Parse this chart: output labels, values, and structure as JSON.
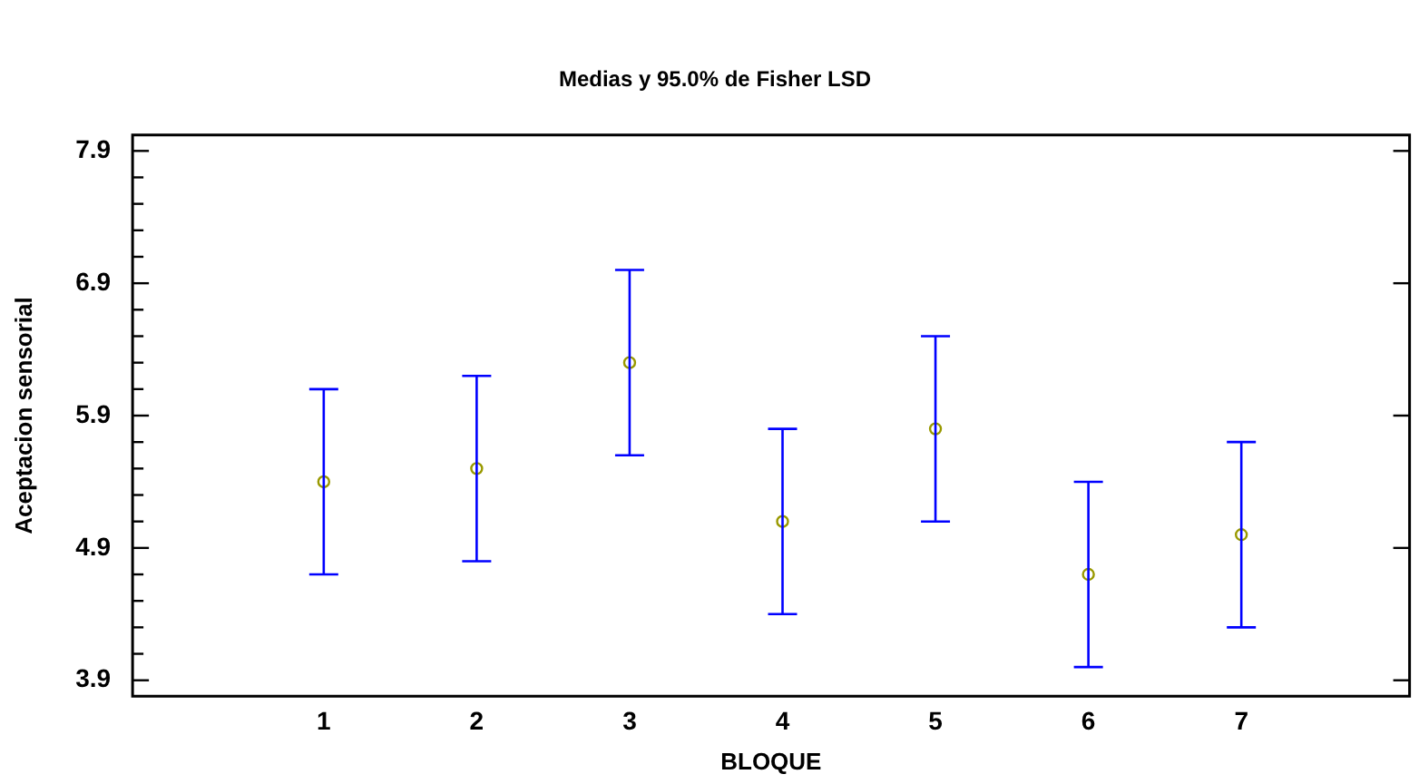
{
  "chart_data": {
    "type": "scatter",
    "title": "Medias y 95.0% de Fisher LSD",
    "xlabel": "BLOQUE",
    "ylabel": "Aceptacion sensorial",
    "x": [
      1,
      2,
      3,
      4,
      5,
      6,
      7
    ],
    "series": [
      {
        "color": "#999900",
        "values": [
          5.4,
          5.5,
          6.3,
          5.1,
          5.8,
          4.7,
          5.0
        ],
        "errors": [
          0.7,
          0.7,
          0.7,
          0.7,
          0.7,
          0.7,
          0.7
        ]
      }
    ],
    "xlim": [
      -0.25,
      8.1
    ],
    "xticks": [
      1,
      2,
      3,
      4,
      5,
      6,
      7
    ],
    "ylim": [
      3.78,
      8.02
    ],
    "yticks": [
      3.9,
      {
        "value": 4.1,
        "label": null
      },
      {
        "value": 4.3,
        "label": null
      },
      {
        "value": 4.5,
        "label": null
      },
      {
        "value": 4.7,
        "label": null
      },
      4.9,
      {
        "value": 5.1,
        "label": null
      },
      {
        "value": 5.3,
        "label": null
      },
      {
        "value": 5.5,
        "label": null
      },
      {
        "value": 5.7,
        "label": null
      },
      5.9,
      {
        "value": 6.1,
        "label": null
      },
      {
        "value": 6.3,
        "label": null
      },
      {
        "value": 6.5,
        "label": null
      },
      {
        "value": 6.7,
        "label": null
      },
      6.9,
      {
        "value": 7.1,
        "label": null
      },
      {
        "value": 7.3,
        "label": null
      },
      {
        "value": 7.5,
        "label": null
      },
      {
        "value": 7.7,
        "label": null
      },
      7.9
    ],
    "grid": false,
    "legend": false,
    "marker": "circle"
  }
}
